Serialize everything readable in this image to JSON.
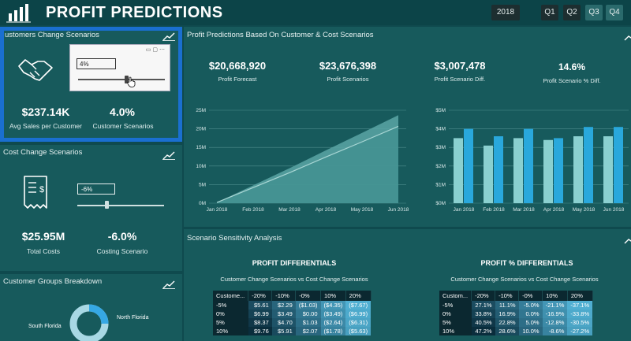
{
  "header": {
    "title": "PROFIT PREDICTIONS",
    "year": "2018",
    "quarters": [
      "Q1",
      "Q2",
      "Q3",
      "Q4"
    ],
    "active_quarters": [
      2,
      3
    ]
  },
  "customer_panel": {
    "title": "ustomers Change Scenarios",
    "input_value": "4%",
    "kpis": [
      {
        "value": "$237.14K",
        "label": "Avg Sales per Customer"
      },
      {
        "value": "4.0%",
        "label": "Customer Scenarios"
      }
    ]
  },
  "cost_panel": {
    "title": "Cost Change Scenarios",
    "input_value": "-6%",
    "kpis": [
      {
        "value": "$25.95M",
        "label": "Total Costs"
      },
      {
        "value": "-6.0%",
        "label": "Costing Scenario"
      }
    ]
  },
  "groups_panel": {
    "title": "Customer Groups Breakdown",
    "labels": [
      "North Florida",
      "South Florida"
    ]
  },
  "profit_panel": {
    "title": "Profit Predictions Based On Customer & Cost Scenarios",
    "kpis": [
      {
        "value": "$20,668,920",
        "label": "Profit Forecast"
      },
      {
        "value": "$23,676,398",
        "label": "Profit Scenarios"
      },
      {
        "value": "$3,007,478",
        "label": "Profit Scenario Diff."
      },
      {
        "value": "14.6%",
        "label": "Profit Scenario % Diff."
      }
    ]
  },
  "sensitivity_panel": {
    "title": "Scenario Sensitivity Analysis",
    "left_title": "PROFIT DIFFERENTIALS",
    "left_subtitle": "Customer Change Scenarios vs Cost Change Scenarios",
    "right_title": "PROFIT % DIFFERENTIALS",
    "right_subtitle": "Customer Change Scenarios vs Cost Change Scenarios",
    "left_table": {
      "headers": [
        "Custome...",
        "-20%",
        "-10%",
        "-0%",
        "10%",
        "20%"
      ],
      "rows": [
        [
          "-5%",
          "$5.61",
          "$2.29",
          "($1.03)",
          "($4.35)",
          "($7.67)"
        ],
        [
          "0%",
          "$6.99",
          "$3.49",
          "$0.00",
          "($3.49)",
          "($6.99)"
        ],
        [
          "5%",
          "$8.37",
          "$4.70",
          "$1.03",
          "($2.64)",
          "($6.31)"
        ],
        [
          "10%",
          "$9.76",
          "$5.91",
          "$2.07",
          "($1.78)",
          "($5.63)"
        ]
      ]
    },
    "right_table": {
      "headers": [
        "Custom...",
        "-20%",
        "-10%",
        "-0%",
        "10%",
        "20%"
      ],
      "rows": [
        [
          "-5%",
          "27.1%",
          "11.1%",
          "-5.0%",
          "-21.1%",
          "-37.1%"
        ],
        [
          "0%",
          "33.8%",
          "16.9%",
          "0.0%",
          "-16.9%",
          "-33.8%"
        ],
        [
          "5%",
          "40.5%",
          "22.8%",
          "5.0%",
          "-12.8%",
          "-30.5%"
        ],
        [
          "10%",
          "47.2%",
          "28.6%",
          "10.0%",
          "-8.6%",
          "-27.2%"
        ]
      ]
    }
  },
  "chart_data": [
    {
      "type": "area",
      "x": [
        "Jan 2018",
        "Feb 2018",
        "Mar 2018",
        "Apr 2018",
        "May 2018",
        "Jun 2018"
      ],
      "yticks": [
        "0M",
        "5M",
        "10M",
        "15M",
        "20M",
        "25M"
      ],
      "ylim": [
        0,
        25
      ],
      "series": [
        {
          "values": [
            0.2,
            4.2,
            8.2,
            12.4,
            16.5,
            20.67
          ]
        },
        {
          "values": [
            0.2,
            4.8,
            9.4,
            14.2,
            18.9,
            23.68
          ]
        }
      ],
      "colors": [
        "#a8d6d4",
        "#5aa6a4"
      ]
    },
    {
      "type": "bar",
      "categories": [
        "Jan 2018",
        "Feb 2018",
        "Mar 2018",
        "Apr 2018",
        "May 2018",
        "Jun 2018"
      ],
      "yticks": [
        "$0M",
        "$1M",
        "$2M",
        "$3M",
        "$4M",
        "$5M"
      ],
      "ylim": [
        0,
        5
      ],
      "series": [
        {
          "values": [
            3.5,
            3.1,
            3.5,
            3.4,
            3.6,
            3.6
          ]
        },
        {
          "values": [
            4.0,
            3.6,
            4.0,
            3.5,
            4.1,
            4.1
          ]
        }
      ],
      "colors": [
        "#8ad0d0",
        "#29a8dc"
      ]
    }
  ],
  "colors": {
    "accent": "#1a6fd0",
    "bg": "#0f4a4e",
    "panel": "#175a5c"
  }
}
